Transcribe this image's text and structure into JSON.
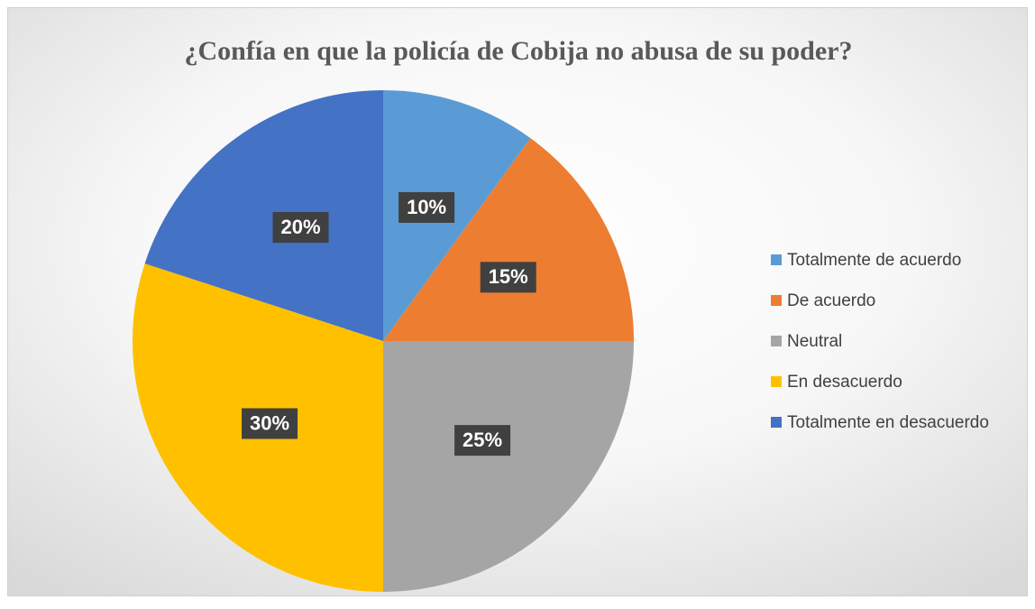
{
  "chart_data": {
    "type": "pie",
    "title": "¿Confía en que la policía de Cobija no abusa de su poder?",
    "categories": [
      "Totalmente de acuerdo",
      "De acuerdo",
      "Neutral",
      "En desacuerdo",
      "Totalmente en desacuerdo"
    ],
    "values": [
      10,
      15,
      25,
      30,
      20
    ],
    "value_labels": [
      "10%",
      "15%",
      "25%",
      "30%",
      "20%"
    ],
    "colors": [
      "#5b9bd5",
      "#ed7d31",
      "#a5a5a5",
      "#ffc000",
      "#4472c4"
    ],
    "legend": "right"
  }
}
